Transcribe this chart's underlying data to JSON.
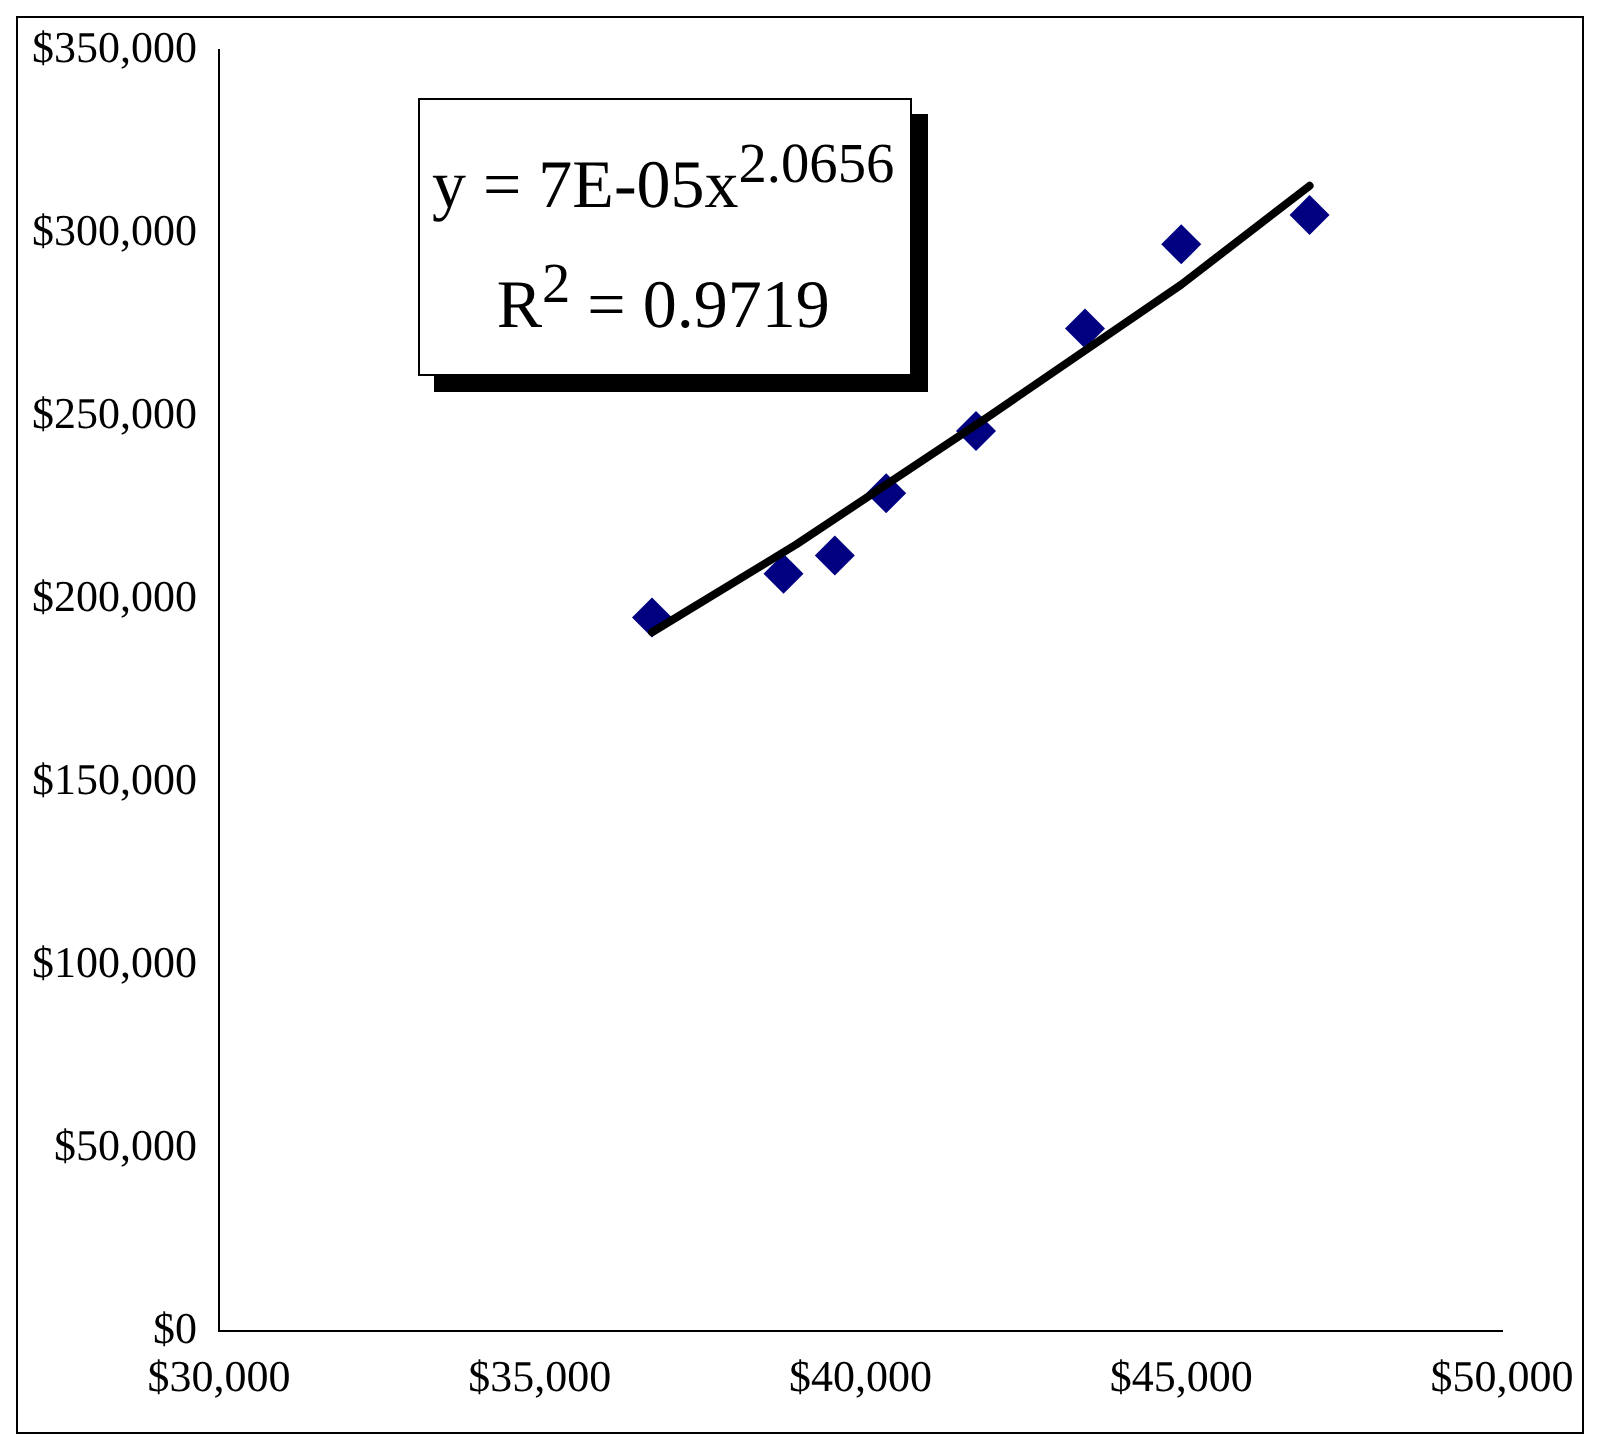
{
  "chart_data": {
    "type": "scatter",
    "annotations": [
      "y = 7E-05x$^{2.0656}$",
      "R$^{2}$ = 0.9719"
    ],
    "x": [
      36750,
      38800,
      39600,
      40400,
      41800,
      43500,
      45000,
      47000
    ],
    "series": [
      {
        "type": "scatter",
        "color": "#000080",
        "marker": "diamond",
        "values": [
          195000,
          207000,
          212000,
          229000,
          246000,
          274000,
          297000,
          305000
        ]
      },
      {
        "type": "line",
        "color": "#000000",
        "marker": "none",
        "x": [
          36750,
          39000,
          42000,
          45000,
          47000
        ],
        "values": [
          191000,
          215000,
          250000,
          286000,
          313000
        ]
      }
    ],
    "xlim": [
      30000,
      50000
    ],
    "xticks": [
      {
        "value": 30000,
        "label": "$30,000"
      },
      {
        "value": 35000,
        "label": "$35,000"
      },
      {
        "value": 40000,
        "label": "$40,000"
      },
      {
        "value": 45000,
        "label": "$45,000"
      },
      {
        "value": 50000,
        "label": "$50,000"
      }
    ],
    "ylim": [
      0,
      350000
    ],
    "yticks": [
      {
        "value": 0,
        "label": "$0"
      },
      {
        "value": 50000,
        "label": "$50,000"
      },
      {
        "value": 100000,
        "label": "$100,000"
      },
      {
        "value": 150000,
        "label": "$150,000"
      },
      {
        "value": 200000,
        "label": "$200,000"
      },
      {
        "value": 250000,
        "label": "$250,000"
      },
      {
        "value": 300000,
        "label": "$300,000"
      },
      {
        "value": 350000,
        "label": "$350,000"
      }
    ],
    "grid": false,
    "legend": false
  }
}
